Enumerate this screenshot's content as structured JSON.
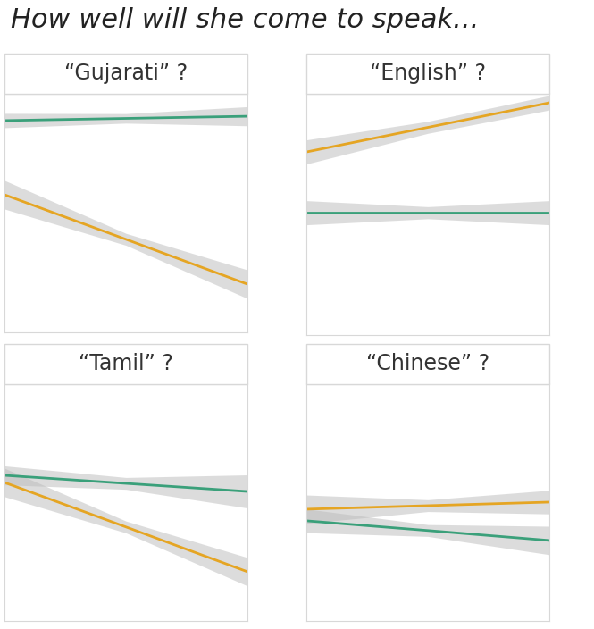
{
  "title": "How well will she come to speak...",
  "chart_data": [
    {
      "type": "line",
      "title": "“Gujarati” ?",
      "xlim": [
        0,
        1
      ],
      "ylim": [
        0,
        1
      ],
      "xticks": [],
      "yticks": [],
      "tick_labels": false,
      "x": [
        0,
        0.5,
        1
      ],
      "series": [
        {
          "color": "#3aa07a",
          "values": [
            0.888,
            0.897,
            0.906
          ],
          "lower": [
            0.858,
            0.877,
            0.866
          ],
          "upper": [
            0.918,
            0.917,
            0.946
          ]
        },
        {
          "color": "#e5a523",
          "values": [
            0.577,
            0.39,
            0.202
          ],
          "lower": [
            0.517,
            0.365,
            0.142
          ],
          "upper": [
            0.637,
            0.415,
            0.262
          ]
        }
      ]
    },
    {
      "type": "line",
      "title": "“English” ?",
      "xlim": [
        0,
        1
      ],
      "ylim": [
        0,
        1
      ],
      "xticks": [],
      "yticks": [],
      "tick_labels": false,
      "x": [
        0,
        0.5,
        1
      ],
      "series": [
        {
          "color": "#e5a523",
          "values": [
            0.759,
            0.861,
            0.963
          ],
          "lower": [
            0.709,
            0.836,
            0.933
          ],
          "upper": [
            0.809,
            0.886,
            0.993
          ]
        },
        {
          "color": "#3aa07a",
          "values": [
            0.507,
            0.507,
            0.507
          ],
          "lower": [
            0.457,
            0.482,
            0.457
          ],
          "upper": [
            0.557,
            0.532,
            0.557
          ]
        }
      ]
    },
    {
      "type": "line",
      "title": "“Tamil” ?",
      "xlim": [
        0,
        1
      ],
      "ylim": [
        0,
        1
      ],
      "xticks": [],
      "yticks": [],
      "tick_labels": false,
      "x": [
        0,
        0.5,
        1
      ],
      "series": [
        {
          "color": "#3aa07a",
          "values": [
            0.615,
            0.581,
            0.547
          ],
          "lower": [
            0.575,
            0.556,
            0.477
          ],
          "upper": [
            0.655,
            0.606,
            0.617
          ]
        },
        {
          "color": "#e5a523",
          "values": [
            0.585,
            0.397,
            0.208
          ],
          "lower": [
            0.525,
            0.372,
            0.148
          ],
          "upper": [
            0.645,
            0.422,
            0.268
          ]
        }
      ]
    },
    {
      "type": "line",
      "title": "“Chinese” ?",
      "xlim": [
        0,
        1
      ],
      "ylim": [
        0,
        1
      ],
      "xticks": [],
      "yticks": [],
      "tick_labels": false,
      "x": [
        0,
        0.5,
        1
      ],
      "series": [
        {
          "color": "#e5a523",
          "values": [
            0.472,
            0.487,
            0.502
          ],
          "lower": [
            0.412,
            0.462,
            0.452
          ],
          "upper": [
            0.532,
            0.512,
            0.552
          ]
        },
        {
          "color": "#3aa07a",
          "values": [
            0.423,
            0.382,
            0.34
          ],
          "lower": [
            0.373,
            0.357,
            0.28
          ],
          "upper": [
            0.473,
            0.407,
            0.4
          ]
        }
      ]
    }
  ]
}
